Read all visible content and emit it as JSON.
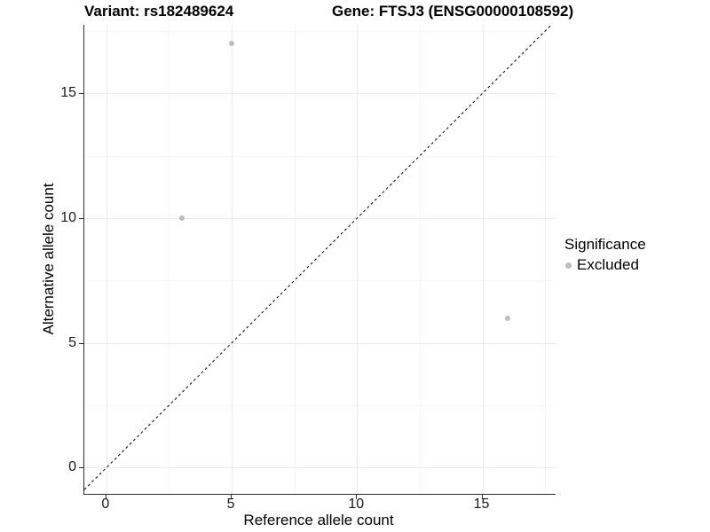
{
  "chart_data": {
    "type": "scatter",
    "title_left": "Variant: rs182489624",
    "title_right": "Gene: FTSJ3 (ENSG00000108592)",
    "xlabel": "Reference allele count",
    "ylabel": "Alternative allele count",
    "xlim": [
      -0.88,
      17.92
    ],
    "ylim": [
      -1.05,
      17.75
    ],
    "xticks": [
      0,
      5,
      10,
      15
    ],
    "yticks": [
      0,
      5,
      10,
      15
    ],
    "minor_ticks": [
      2.5,
      7.5,
      12.5,
      17.5
    ],
    "grid": true,
    "identity_line": {
      "style": "dashed",
      "color": "#000000",
      "dash": "3,3",
      "meaning": "y = x"
    },
    "series": [
      {
        "name": "Excluded",
        "color": "#bdbdbd",
        "points": [
          {
            "x": 5,
            "y": 17
          },
          {
            "x": 3,
            "y": 10
          },
          {
            "x": 16,
            "y": 6
          }
        ]
      }
    ],
    "legend": {
      "title": "Significance",
      "position": "right",
      "items": [
        {
          "label": "Excluded",
          "color": "#bdbdbd"
        }
      ]
    }
  },
  "colors": {
    "background": "#ffffff",
    "axis_line": "#2a2a2a",
    "grid_major": "#ebebeb",
    "grid_minor": "#f5f5f5",
    "text": "#000000",
    "tick_text": "#1a1a1a",
    "point": "#bdbdbd"
  }
}
